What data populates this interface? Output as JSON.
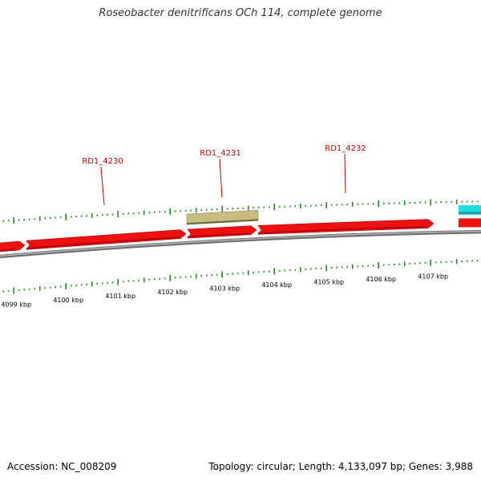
{
  "title": "Roseobacter denitrificans OCh 114, complete genome",
  "footer": {
    "accession": "Accession: NC_008209",
    "summary": "Topology: circular; Length: 4,133,097 bp; Genes: 3,988"
  },
  "colors": {
    "backbone": "#888888",
    "gene_red": "#ee1111",
    "gene_olive": "#c8bd80",
    "gene_cyan": "#22dddd",
    "tick": "#228822",
    "label_red": "#cc0000",
    "scale_text": "#000000"
  },
  "scale": {
    "unit": "kbp",
    "labels": [
      "4099 kbp",
      "4100 kbp",
      "4101 kbp",
      "4102 kbp",
      "4103 kbp",
      "4104 kbp",
      "4105 kbp",
      "4106 kbp",
      "4107 kbp"
    ]
  },
  "gene_labels": [
    "RD1_4230",
    "RD1_4231",
    "RD1_4232"
  ]
}
